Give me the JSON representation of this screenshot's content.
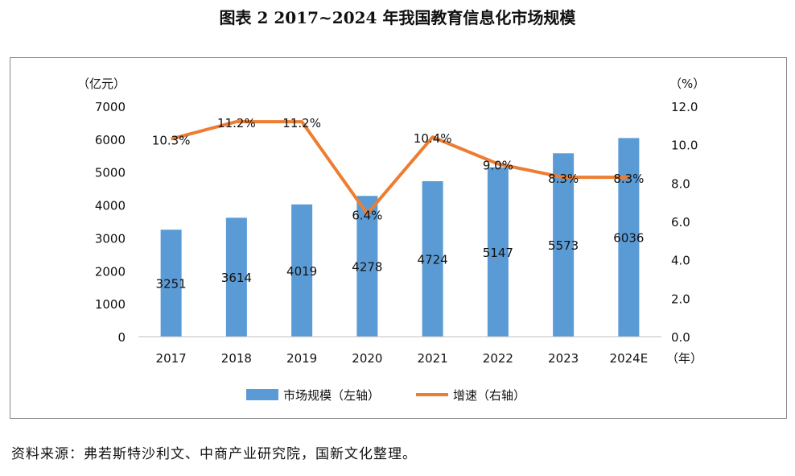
{
  "title": "图表 2  2017~2024 年我国教育信息化市场规模",
  "source": "资料来源：弗若斯特沙利文、中商产业研究院，国新文化整理。",
  "colors": {
    "bar": "#5b9bd5",
    "line": "#ed7d31",
    "axis": "#bfbfbf",
    "text": "#111111"
  },
  "chart_data": {
    "type": "bar",
    "categories": [
      "2017",
      "2018",
      "2019",
      "2020",
      "2021",
      "2022",
      "2023",
      "2024E"
    ],
    "series": [
      {
        "name": "市场规模（左轴）",
        "type": "bar",
        "axis": "left",
        "values": [
          3251,
          3614,
          4019,
          4278,
          4724,
          5147,
          5573,
          6036
        ],
        "labels": [
          "3251",
          "3614",
          "4019",
          "4278",
          "4724",
          "5147",
          "5573",
          "6036"
        ]
      },
      {
        "name": "增速（右轴）",
        "type": "line",
        "axis": "right",
        "values": [
          10.3,
          11.2,
          11.2,
          6.4,
          10.4,
          9.0,
          8.3,
          8.3
        ],
        "labels": [
          "10.3%",
          "11.2%",
          "11.2%",
          "6.4%",
          "10.4%",
          "9.0%",
          "8.3%",
          "8.3%"
        ]
      }
    ],
    "y_left": {
      "unit": "（亿元）",
      "ylim": [
        0,
        7000
      ],
      "ticks": [
        "0",
        "1000",
        "2000",
        "3000",
        "4000",
        "5000",
        "6000",
        "7000"
      ]
    },
    "y_right": {
      "unit": "（%）",
      "ylim": [
        0,
        12
      ],
      "ticks": [
        "0.0",
        "2.0",
        "4.0",
        "6.0",
        "8.0",
        "10.0",
        "12.0"
      ]
    },
    "x_unit": "（年）",
    "legend_position": "bottom",
    "grid": false
  }
}
